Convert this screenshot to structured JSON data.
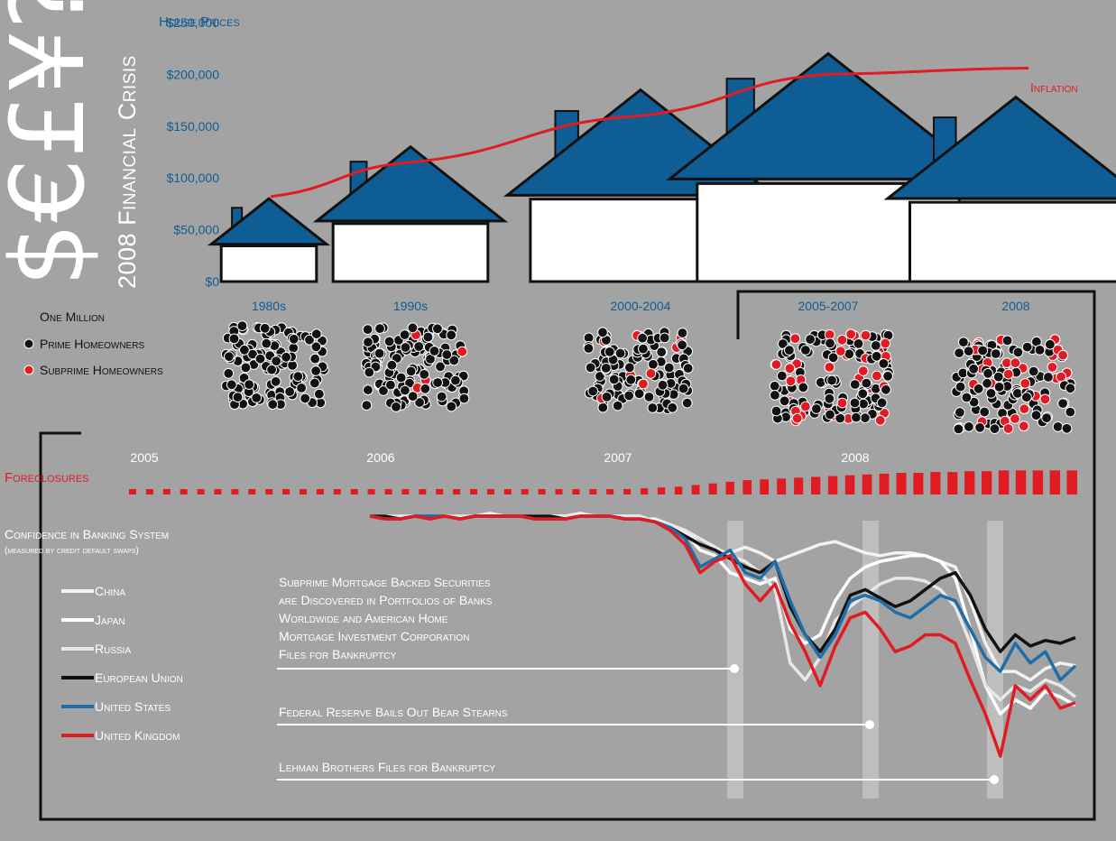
{
  "title": {
    "symbols": "$€£¥?!",
    "subtitle": "2008 Financial Crisis"
  },
  "colors": {
    "background": "#a3a3a3",
    "house_blue": "#0f5d95",
    "red": "#e01b22",
    "black": "#111111",
    "white": "#ffffff",
    "band": "#d6d6d6",
    "china": "#f2f2f2",
    "japan": "#ffffff",
    "russia": "#e8e8e8",
    "eu": "#111111",
    "us": "#1f6ea8",
    "uk": "#e01b22"
  },
  "chart_data": [
    {
      "type": "bar",
      "title": "House Prices",
      "categories": [
        "1980s",
        "1990s",
        "2000-2004",
        "2005-2007",
        "2008"
      ],
      "values": [
        80000,
        130000,
        185000,
        220000,
        178000
      ],
      "ylim": [
        0,
        250000
      ],
      "yticks": [
        "$0",
        "$50,000",
        "$100,000",
        "$150,000",
        "$200,000",
        "$250,000"
      ],
      "overlay_series": {
        "name": "Inflation",
        "values": [
          82000,
          115000,
          160000,
          200000,
          206000
        ]
      },
      "grid": false
    },
    {
      "type": "scatter",
      "title": "",
      "legend": {
        "unit": "One Million",
        "prime": "Prime Homeowners",
        "subprime": "Subprime Homeowners"
      },
      "groups": [
        {
          "label": "1980s",
          "prime": 120,
          "subprime": 0
        },
        {
          "label": "1990s",
          "prime": 126,
          "subprime": 5
        },
        {
          "label": "2000-2004",
          "prime": 112,
          "subprime": 10
        },
        {
          "label": "2005-2007",
          "prime": 105,
          "subprime": 38
        },
        {
          "label": "2008",
          "prime": 104,
          "subprime": 30
        }
      ]
    },
    {
      "type": "bar",
      "title": "Foreclosures",
      "x_labels": [
        "2005",
        "2006",
        "2007",
        "2008"
      ],
      "values": [
        1,
        1,
        1,
        1,
        1,
        1,
        1,
        1,
        1,
        1,
        1,
        1,
        1,
        1,
        1,
        1,
        1,
        1,
        1,
        1,
        1,
        1,
        1,
        1,
        1,
        1,
        1,
        1,
        1,
        1,
        1.1,
        1.2,
        1.3,
        1.5,
        1.7,
        1.9,
        2.1,
        2.2,
        2.3,
        2.4,
        2.5,
        2.6,
        2.7,
        2.8,
        2.9,
        3.0,
        3.0,
        3.1,
        3.1,
        3.2,
        3.2,
        3.3,
        3.3,
        3.3,
        3.3,
        3.3
      ]
    },
    {
      "type": "line",
      "title": "Confidence in Banking System",
      "subtitle": "(measured by credit default swaps)",
      "series": [
        {
          "name": "China",
          "values": [
            100,
            100,
            99,
            100,
            100,
            100,
            99,
            100,
            101,
            100,
            100,
            100,
            100,
            100,
            101,
            100,
            100,
            99,
            99,
            99,
            97,
            95,
            90,
            88,
            87,
            89,
            87,
            84,
            86,
            88,
            90,
            91,
            89,
            87,
            86,
            87,
            87,
            86,
            84,
            82,
            70,
            55,
            45,
            45,
            42,
            46,
            48,
            47
          ]
        },
        {
          "name": "Japan",
          "values": [
            100,
            99,
            100,
            100,
            100,
            100,
            99,
            100,
            100,
            100,
            100,
            100,
            100,
            100,
            100,
            100,
            100,
            100,
            100,
            98,
            96,
            94,
            88,
            86,
            80,
            78,
            76,
            78,
            60,
            55,
            58,
            70,
            78,
            82,
            84,
            85,
            86,
            86,
            84,
            78,
            60,
            40,
            30,
            35,
            32,
            38,
            36,
            33
          ]
        },
        {
          "name": "Russia",
          "values": [
            100,
            100,
            100,
            100,
            100,
            100,
            100,
            100,
            100,
            100,
            100,
            100,
            100,
            100,
            100,
            100,
            100,
            100,
            100,
            98,
            97,
            95,
            92,
            89,
            86,
            84,
            80,
            74,
            48,
            42,
            50,
            63,
            68,
            72,
            76,
            78,
            78,
            77,
            74,
            68,
            55,
            40,
            35,
            40,
            38,
            42,
            40,
            36
          ]
        },
        {
          "name": "European Union",
          "values": [
            100,
            100,
            99,
            100,
            100,
            100,
            99,
            100,
            100,
            100,
            100,
            100,
            100,
            99,
            100,
            100,
            100,
            99,
            99,
            98,
            96,
            93,
            90,
            88,
            85,
            82,
            80,
            84,
            68,
            58,
            52,
            60,
            72,
            74,
            71,
            68,
            70,
            74,
            78,
            80,
            72,
            60,
            52,
            58,
            54,
            56,
            55,
            57
          ]
        },
        {
          "name": "United States",
          "values": [
            100,
            99,
            99,
            100,
            100,
            100,
            99,
            100,
            100,
            100,
            100,
            99,
            99,
            99,
            100,
            100,
            100,
            99,
            99,
            98,
            96,
            92,
            82,
            85,
            88,
            80,
            78,
            84,
            70,
            58,
            50,
            58,
            70,
            72,
            70,
            66,
            64,
            68,
            72,
            70,
            60,
            50,
            45,
            55,
            48,
            52,
            42,
            47
          ]
        },
        {
          "name": "United Kingdom",
          "values": [
            100,
            99,
            99,
            100,
            99,
            100,
            99,
            100,
            100,
            100,
            100,
            99,
            99,
            99,
            100,
            100,
            100,
            99,
            99,
            98,
            95,
            90,
            80,
            84,
            86,
            76,
            70,
            76,
            62,
            52,
            40,
            54,
            64,
            66,
            60,
            52,
            54,
            58,
            58,
            55,
            42,
            30,
            15,
            40,
            35,
            40,
            32,
            34
          ]
        }
      ],
      "annotations": [
        {
          "lines": [
            "Subprime Mortgage Backed Securities",
            "are Discovered in Portfolios of Banks",
            "Worldwide and American Home",
            "Mortgage Investment Corporation",
            "Files for Bankruptcy"
          ]
        },
        {
          "lines": [
            "Federal Reserve Bails Out Bear Stearns"
          ]
        },
        {
          "lines": [
            "Lehman Brothers Files for Bankruptcy"
          ]
        }
      ]
    }
  ]
}
